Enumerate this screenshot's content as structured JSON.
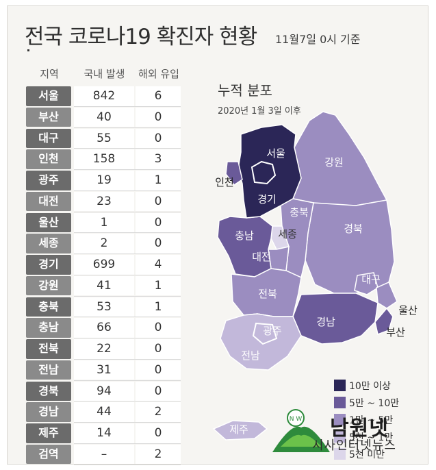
{
  "title": "전국 코로나19 확진자 현황",
  "basis_date": "11월7일 0시 기준",
  "chart_data": [
    {
      "type": "table",
      "columns": [
        "지역",
        "국내 발생",
        "해외 유입"
      ],
      "rows": [
        {
          "region": "서울",
          "domestic": "842",
          "overseas": "6"
        },
        {
          "region": "부산",
          "domestic": "40",
          "overseas": "0"
        },
        {
          "region": "대구",
          "domestic": "55",
          "overseas": "0"
        },
        {
          "region": "인천",
          "domestic": "158",
          "overseas": "3"
        },
        {
          "region": "광주",
          "domestic": "19",
          "overseas": "1"
        },
        {
          "region": "대전",
          "domestic": "23",
          "overseas": "0"
        },
        {
          "region": "울산",
          "domestic": "1",
          "overseas": "0"
        },
        {
          "region": "세종",
          "domestic": "2",
          "overseas": "0"
        },
        {
          "region": "경기",
          "domestic": "699",
          "overseas": "4"
        },
        {
          "region": "강원",
          "domestic": "41",
          "overseas": "1"
        },
        {
          "region": "충북",
          "domestic": "53",
          "overseas": "1"
        },
        {
          "region": "충남",
          "domestic": "66",
          "overseas": "0"
        },
        {
          "region": "전북",
          "domestic": "22",
          "overseas": "0"
        },
        {
          "region": "전남",
          "domestic": "31",
          "overseas": "0"
        },
        {
          "region": "경북",
          "domestic": "94",
          "overseas": "0"
        },
        {
          "region": "경남",
          "domestic": "44",
          "overseas": "2"
        },
        {
          "region": "제주",
          "domestic": "14",
          "overseas": "0"
        },
        {
          "region": "검역",
          "domestic": "–",
          "overseas": "2"
        }
      ]
    },
    {
      "type": "map",
      "title": "누적 분포",
      "subtitle": "2020년 1월 3일 이후",
      "legend": [
        {
          "label": "10만 이상",
          "color": "#2b2657"
        },
        {
          "label": "5만 ~ 10만",
          "color": "#6a5a99"
        },
        {
          "label": "1만 ~ 5만",
          "color": "#9b8dc0"
        },
        {
          "label": "5천 ~ 1만",
          "color": "#c2b8da"
        },
        {
          "label": "5천 미만",
          "color": "#dcd6ea"
        }
      ],
      "regions": [
        {
          "name": "서울",
          "class": "10만 이상"
        },
        {
          "name": "경기",
          "class": "10만 이상"
        },
        {
          "name": "인천",
          "class": "5만 ~ 10만"
        },
        {
          "name": "충남",
          "class": "5만 ~ 10만"
        },
        {
          "name": "경남",
          "class": "5만 ~ 10만"
        },
        {
          "name": "부산",
          "class": "5만 ~ 10만"
        },
        {
          "name": "강원",
          "class": "1만 ~ 5만"
        },
        {
          "name": "충북",
          "class": "1만 ~ 5만"
        },
        {
          "name": "대전",
          "class": "1만 ~ 5만"
        },
        {
          "name": "경북",
          "class": "1만 ~ 5만"
        },
        {
          "name": "대구",
          "class": "1만 ~ 5만"
        },
        {
          "name": "울산",
          "class": "1만 ~ 5만"
        },
        {
          "name": "전북",
          "class": "1만 ~ 5만"
        },
        {
          "name": "광주",
          "class": "5천 ~ 1만"
        },
        {
          "name": "전남",
          "class": "5천 ~ 1만"
        },
        {
          "name": "세종",
          "class": "5천 미만"
        },
        {
          "name": "제주",
          "class": "5천 ~ 1만"
        }
      ]
    }
  ],
  "watermark": {
    "name": "남원넷",
    "sub": "시사인터넷뉴스",
    "emblem": "N W"
  }
}
